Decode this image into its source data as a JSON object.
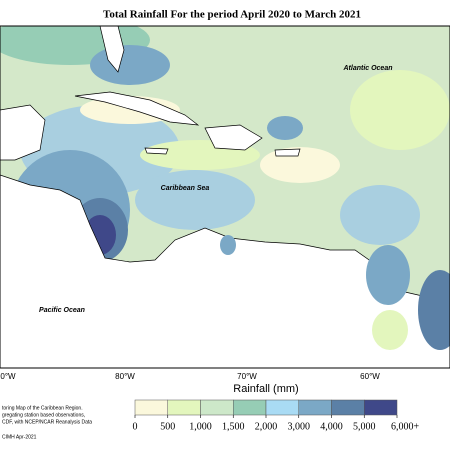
{
  "title": "Total Rainfall For the period April 2020 to March 2021",
  "map": {
    "labels": [
      "Atlantic Ocean",
      "Caribbean Sea",
      "Pacific Ocean"
    ],
    "longitude_labels": [
      "0°W",
      "80°W",
      "70°W",
      "60°W"
    ]
  },
  "legend": {
    "title": "Rainfall (mm)",
    "colors": [
      "#fbf8dc",
      "#e3f6bd",
      "#cde8c9",
      "#96cdb5",
      "#a9dbf4",
      "#7ba8c6",
      "#5b80a6",
      "#3f4889"
    ],
    "ticks": [
      0,
      500,
      {
        "value": 1000,
        "label": "1,000"
      },
      {
        "value": 1500,
        "label": "1,500"
      },
      {
        "value": 2000,
        "label": "2,000"
      },
      {
        "value": 3000,
        "label": "3,000"
      },
      {
        "value": 4000,
        "label": "4,000"
      },
      {
        "value": 5000,
        "label": "5,000"
      },
      {
        "value": 6000,
        "label": "6,000+"
      }
    ]
  },
  "footnote": [
    "toring Map of the Caribbean Region.",
    "gregating station based observations,",
    "CDF, with NCEP/NCAR Reanalysis Data",
    "CIMH Apr-2021"
  ]
}
